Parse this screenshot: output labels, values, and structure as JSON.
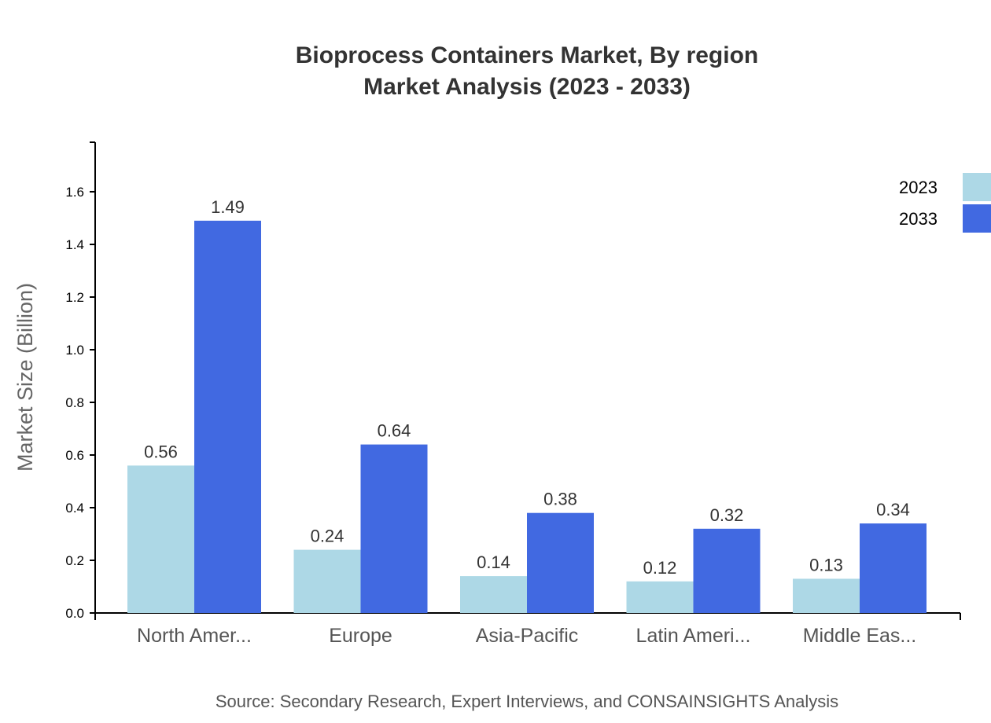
{
  "chart_data": {
    "type": "bar",
    "title": "Bioprocess Containers Market, By region",
    "subtitle": "Market Analysis (2023 - 2033)",
    "xlabel": "",
    "ylabel": "Market Size (Billion)",
    "ylim": [
      0,
      1.788
    ],
    "yticks": [
      "0.0",
      "0.2",
      "0.4",
      "0.6",
      "0.8",
      "1.0",
      "1.2",
      "1.4",
      "1.6"
    ],
    "categories": [
      "North Amer...",
      "Europe",
      "Asia-Pacific",
      "Latin Ameri...",
      "Middle Eas..."
    ],
    "series": [
      {
        "name": "2023",
        "color": "#add8e6",
        "values": [
          0.56,
          0.24,
          0.14,
          0.12,
          0.13
        ]
      },
      {
        "name": "2033",
        "color": "#4169e1",
        "values": [
          1.49,
          0.64,
          0.38,
          0.32,
          0.34
        ]
      }
    ],
    "grid": false,
    "legend_position": "top-right",
    "source": "Source: Secondary Research, Expert Interviews, and CONSAINSIGHTS Analysis"
  }
}
